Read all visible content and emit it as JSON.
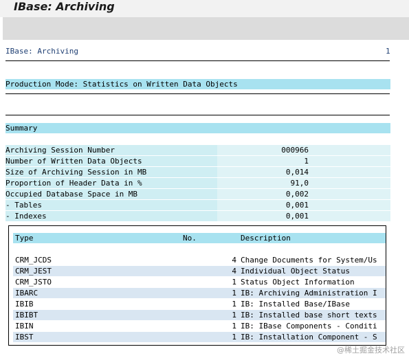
{
  "window": {
    "title": "IBase: Archiving"
  },
  "report": {
    "header_left": "IBase: Archiving",
    "header_right": "1",
    "mode_line": "Production Mode: Statistics on Written Data Objects",
    "summary_label": "Summary"
  },
  "stats": [
    {
      "label": "Archiving Session Number",
      "value": "000966"
    },
    {
      "label": "Number of Written Data Objects",
      "value": "1"
    },
    {
      "label": "Size of Archiving Session in MB",
      "value": "0,014"
    },
    {
      "label": "Proportion of Header Data in %",
      "value": "91,0"
    },
    {
      "label": "Occupied Database Space in MB",
      "value": "0,002"
    },
    {
      "label": "- Tables",
      "value": "0,001"
    },
    {
      "label": "- Indexes",
      "value": "0,001"
    }
  ],
  "table": {
    "headers": {
      "type": "Type",
      "no": "No.",
      "desc": "Description"
    },
    "rows": [
      {
        "type": "CRM_JCDS",
        "no": "4",
        "desc": "Change Documents for System/Us"
      },
      {
        "type": "CRM_JEST",
        "no": "4",
        "desc": "Individual Object Status"
      },
      {
        "type": "CRM_JSTO",
        "no": "1",
        "desc": "Status Object Information"
      },
      {
        "type": "IBARC",
        "no": "1",
        "desc": "IB: Archiving Administration I"
      },
      {
        "type": "IBIB",
        "no": "1",
        "desc": "IB: Installed Base/IBase"
      },
      {
        "type": "IBIBT",
        "no": "1",
        "desc": "IB: Installed base short texts"
      },
      {
        "type": "IBIN",
        "no": "1",
        "desc": "IB: IBase Components - Conditi"
      },
      {
        "type": "IBST",
        "no": "1",
        "desc": "IB: Installation Component - S"
      }
    ]
  },
  "watermark": "@稀土掘金技术社区",
  "colors": {
    "band": "#a8e2f0",
    "stat_label_bg": "#cfeef3",
    "stat_value_bg": "#dff3f6",
    "row_alt": "#d9e6f2"
  }
}
